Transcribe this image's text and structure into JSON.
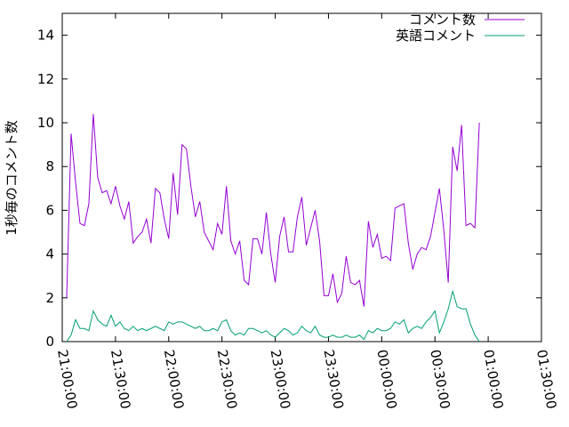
{
  "chart_data": {
    "type": "line",
    "ylabel": "1秒毎のコメント数",
    "x": [
      "21:02:30",
      "21:05:00",
      "21:07:30",
      "21:10:00",
      "21:12:30",
      "21:15:00",
      "21:17:30",
      "21:20:00",
      "21:22:30",
      "21:25:00",
      "21:27:30",
      "21:30:00",
      "21:32:30",
      "21:35:00",
      "21:37:30",
      "21:40:00",
      "21:42:30",
      "21:45:00",
      "21:47:30",
      "21:50:00",
      "21:52:30",
      "21:55:00",
      "21:57:30",
      "22:00:00",
      "22:02:30",
      "22:05:00",
      "22:07:30",
      "22:10:00",
      "22:12:30",
      "22:15:00",
      "22:17:30",
      "22:20:00",
      "22:22:30",
      "22:25:00",
      "22:27:30",
      "22:30:00",
      "22:32:30",
      "22:35:00",
      "22:37:30",
      "22:40:00",
      "22:42:30",
      "22:45:00",
      "22:47:30",
      "22:50:00",
      "22:52:30",
      "22:55:00",
      "22:57:30",
      "23:00:00",
      "23:02:30",
      "23:05:00",
      "23:07:30",
      "23:10:00",
      "23:12:30",
      "23:15:00",
      "23:17:30",
      "23:20:00",
      "23:22:30",
      "23:25:00",
      "23:27:30",
      "23:30:00",
      "23:32:30",
      "23:35:00",
      "23:37:30",
      "23:40:00",
      "23:42:30",
      "23:45:00",
      "23:47:30",
      "23:50:00",
      "23:52:30",
      "23:55:00",
      "23:57:30",
      "00:00:00",
      "00:02:30",
      "00:05:00",
      "00:07:30",
      "00:10:00",
      "00:12:30",
      "00:15:00",
      "00:17:30",
      "00:20:00",
      "00:22:30",
      "00:25:00",
      "00:27:30",
      "00:30:00",
      "00:32:30",
      "00:35:00",
      "00:37:30",
      "00:40:00",
      "00:42:30",
      "00:45:00",
      "00:47:30",
      "00:50:00",
      "00:52:30",
      "00:55:00"
    ],
    "series": [
      {
        "name": "コメント数",
        "color": "#9400d3",
        "values": [
          2.0,
          9.5,
          7.3,
          5.4,
          5.3,
          6.3,
          10.4,
          7.5,
          6.8,
          6.9,
          6.3,
          7.1,
          6.2,
          5.6,
          6.4,
          4.5,
          4.8,
          5.0,
          5.6,
          4.5,
          7.0,
          6.8,
          5.6,
          4.7,
          7.7,
          5.8,
          9.0,
          8.8,
          7.1,
          5.7,
          6.4,
          5.0,
          4.6,
          4.2,
          5.4,
          4.9,
          7.1,
          4.6,
          4.0,
          4.6,
          2.8,
          2.6,
          4.7,
          4.7,
          4.0,
          5.9,
          4.0,
          2.7,
          4.8,
          5.7,
          4.1,
          4.1,
          5.7,
          6.6,
          4.4,
          5.2,
          6.0,
          4.6,
          2.1,
          2.1,
          3.1,
          1.8,
          2.2,
          3.9,
          2.7,
          2.6,
          2.8,
          1.6,
          5.5,
          4.3,
          4.9,
          3.8,
          3.9,
          3.7,
          6.1,
          6.2,
          6.3,
          4.5,
          3.3,
          4.0,
          4.3,
          4.2,
          4.8,
          5.9,
          7.0,
          5.1,
          2.7,
          8.9,
          7.8,
          9.9,
          5.3,
          5.4,
          5.2,
          10.0
        ]
      },
      {
        "name": "英語コメント",
        "color": "#009e73",
        "values": [
          0.0,
          0.3,
          1.0,
          0.6,
          0.6,
          0.5,
          1.4,
          1.0,
          0.8,
          0.7,
          1.2,
          0.7,
          0.9,
          0.6,
          0.5,
          0.7,
          0.5,
          0.6,
          0.5,
          0.6,
          0.7,
          0.6,
          0.5,
          0.9,
          0.8,
          0.9,
          0.9,
          0.8,
          0.7,
          0.6,
          0.7,
          0.5,
          0.5,
          0.6,
          0.5,
          0.9,
          1.0,
          0.5,
          0.3,
          0.4,
          0.3,
          0.6,
          0.6,
          0.5,
          0.4,
          0.5,
          0.3,
          0.2,
          0.4,
          0.6,
          0.5,
          0.3,
          0.4,
          0.7,
          0.5,
          0.4,
          0.7,
          0.3,
          0.2,
          0.2,
          0.3,
          0.2,
          0.2,
          0.3,
          0.2,
          0.2,
          0.3,
          0.1,
          0.5,
          0.4,
          0.6,
          0.5,
          0.5,
          0.6,
          0.9,
          0.8,
          1.0,
          0.4,
          0.6,
          0.7,
          0.6,
          0.9,
          1.1,
          1.4,
          0.4,
          0.9,
          1.5,
          2.3,
          1.6,
          1.5,
          1.5,
          0.8,
          0.3,
          0.0
        ]
      }
    ],
    "xlim": [
      "21:00:00",
      "01:30:00"
    ],
    "xticks": [
      "21:00:00",
      "21:30:00",
      "22:00:00",
      "22:30:00",
      "23:00:00",
      "23:30:00",
      "00:00:00",
      "00:30:00",
      "01:00:00",
      "01:30:00"
    ],
    "ylim": [
      0,
      15
    ],
    "yticks": [
      0,
      2,
      4,
      6,
      8,
      10,
      12,
      14
    ],
    "legend": "top-right"
  }
}
